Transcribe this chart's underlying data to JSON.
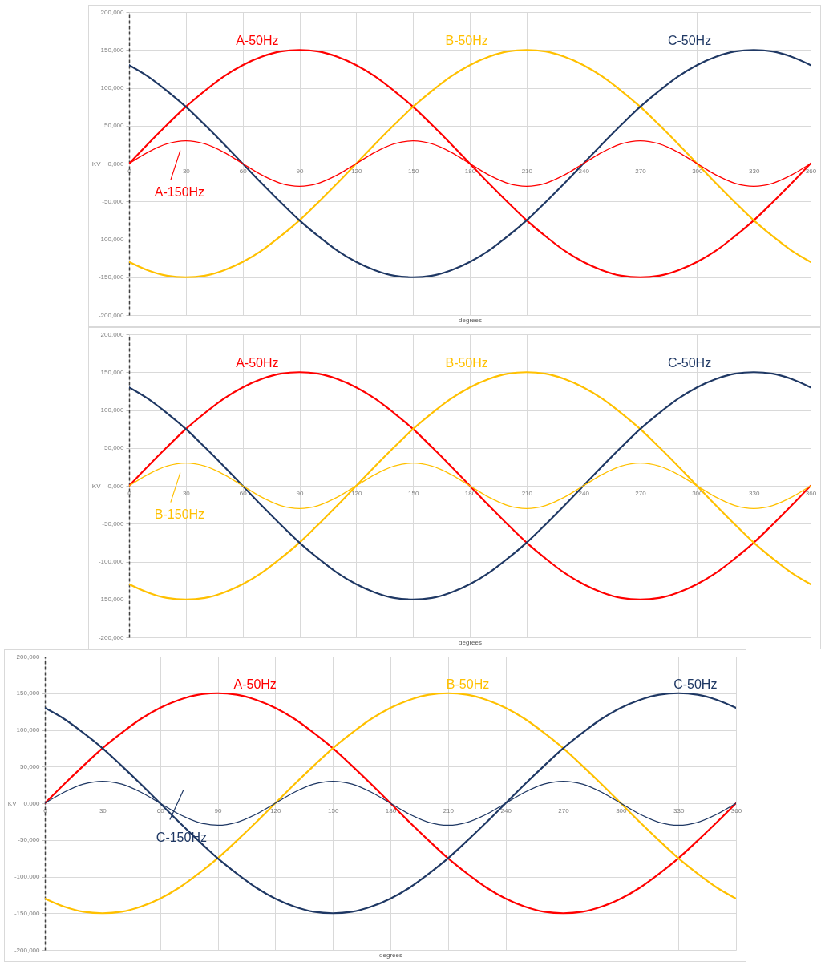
{
  "chart_data": [
    {
      "type": "line",
      "xlabel": "degrees",
      "ylabel": "KV",
      "grid": true,
      "x": [
        0,
        10,
        20,
        30,
        40,
        50,
        60,
        70,
        80,
        90,
        100,
        110,
        120,
        130,
        140,
        150,
        160,
        170,
        180,
        190,
        200,
        210,
        220,
        230,
        240,
        250,
        260,
        270,
        280,
        290,
        300,
        310,
        320,
        330,
        340,
        350,
        360
      ],
      "xlim": [
        0,
        360
      ],
      "xticks": [
        0,
        30,
        60,
        90,
        120,
        150,
        180,
        210,
        240,
        270,
        300,
        330,
        360
      ],
      "ylim": [
        -200,
        200
      ],
      "yticks": [
        {
          "value": -200,
          "label": "-200,000"
        },
        {
          "value": -150,
          "label": "-150,000"
        },
        {
          "value": -100,
          "label": "-100,000"
        },
        {
          "value": -50,
          "label": "-50,000"
        },
        {
          "value": 0,
          "label": "0,000"
        },
        {
          "value": 50,
          "label": "50,000"
        },
        {
          "value": 100,
          "label": "100,000"
        },
        {
          "value": 150,
          "label": "150,000"
        },
        {
          "value": 200,
          "label": "200,000"
        }
      ],
      "series": [
        {
          "name": "A-50Hz",
          "color": "#ff0000",
          "values": [
            0,
            26,
            51,
            75,
            96,
            115,
            130,
            141,
            148,
            150,
            148,
            141,
            130,
            115,
            96,
            75,
            51,
            26,
            0,
            -26,
            -51,
            -75,
            -96,
            -115,
            -130,
            -141,
            -148,
            -150,
            -148,
            -141,
            -130,
            -115,
            -96,
            -75,
            -51,
            -26,
            0
          ]
        },
        {
          "name": "B-50Hz",
          "color": "#ffc000",
          "values": [
            -130,
            -141,
            -148,
            -150,
            -148,
            -141,
            -130,
            -115,
            -96,
            -75,
            -51,
            -26,
            0,
            26,
            51,
            75,
            96,
            115,
            130,
            141,
            148,
            150,
            148,
            141,
            130,
            115,
            96,
            75,
            51,
            26,
            0,
            -26,
            -51,
            -75,
            -96,
            -115,
            -130
          ]
        },
        {
          "name": "C-50Hz",
          "color": "#1f3864",
          "values": [
            130,
            115,
            96,
            75,
            51,
            26,
            0,
            -26,
            -51,
            -75,
            -96,
            -115,
            -130,
            -141,
            -148,
            -150,
            -148,
            -141,
            -130,
            -115,
            -96,
            -75,
            -51,
            -26,
            0,
            26,
            51,
            75,
            96,
            115,
            130,
            141,
            148,
            150,
            148,
            141,
            130
          ]
        },
        {
          "name": "A-150Hz",
          "color": "#ff0000",
          "values": [
            0,
            15,
            26,
            30,
            26,
            15,
            0,
            -15,
            -26,
            -30,
            -26,
            -15,
            0,
            15,
            26,
            30,
            26,
            15,
            0,
            -15,
            -26,
            -30,
            -26,
            -15,
            0,
            15,
            26,
            30,
            26,
            15,
            0,
            -15,
            -26,
            -30,
            -26,
            -15,
            0
          ]
        }
      ]
    },
    {
      "type": "line",
      "xlabel": "degrees",
      "ylabel": "KV",
      "grid": true,
      "x": [
        0,
        10,
        20,
        30,
        40,
        50,
        60,
        70,
        80,
        90,
        100,
        110,
        120,
        130,
        140,
        150,
        160,
        170,
        180,
        190,
        200,
        210,
        220,
        230,
        240,
        250,
        260,
        270,
        280,
        290,
        300,
        310,
        320,
        330,
        340,
        350,
        360
      ],
      "xlim": [
        0,
        360
      ],
      "xticks": [
        0,
        30,
        60,
        90,
        120,
        150,
        180,
        210,
        240,
        270,
        300,
        330,
        360
      ],
      "ylim": [
        -200,
        200
      ],
      "yticks": [
        {
          "value": -200,
          "label": "-200,000"
        },
        {
          "value": -150,
          "label": "-150,000"
        },
        {
          "value": -100,
          "label": "-100,000"
        },
        {
          "value": -50,
          "label": "-50,000"
        },
        {
          "value": 0,
          "label": "0,000"
        },
        {
          "value": 50,
          "label": "50,000"
        },
        {
          "value": 100,
          "label": "100,000"
        },
        {
          "value": 150,
          "label": "150,000"
        },
        {
          "value": 200,
          "label": "200,000"
        }
      ],
      "series": [
        {
          "name": "A-50Hz",
          "color": "#ff0000",
          "values": [
            0,
            26,
            51,
            75,
            96,
            115,
            130,
            141,
            148,
            150,
            148,
            141,
            130,
            115,
            96,
            75,
            51,
            26,
            0,
            -26,
            -51,
            -75,
            -96,
            -115,
            -130,
            -141,
            -148,
            -150,
            -148,
            -141,
            -130,
            -115,
            -96,
            -75,
            -51,
            -26,
            0
          ]
        },
        {
          "name": "B-50Hz",
          "color": "#ffc000",
          "values": [
            -130,
            -141,
            -148,
            -150,
            -148,
            -141,
            -130,
            -115,
            -96,
            -75,
            -51,
            -26,
            0,
            26,
            51,
            75,
            96,
            115,
            130,
            141,
            148,
            150,
            148,
            141,
            130,
            115,
            96,
            75,
            51,
            26,
            0,
            -26,
            -51,
            -75,
            -96,
            -115,
            -130
          ]
        },
        {
          "name": "C-50Hz",
          "color": "#1f3864",
          "values": [
            130,
            115,
            96,
            75,
            51,
            26,
            0,
            -26,
            -51,
            -75,
            -96,
            -115,
            -130,
            -141,
            -148,
            -150,
            -148,
            -141,
            -130,
            -115,
            -96,
            -75,
            -51,
            -26,
            0,
            26,
            51,
            75,
            96,
            115,
            130,
            141,
            148,
            150,
            148,
            141,
            130
          ]
        },
        {
          "name": "B-150Hz",
          "color": "#ffc000",
          "values": [
            0,
            15,
            26,
            30,
            26,
            15,
            0,
            -15,
            -26,
            -30,
            -26,
            -15,
            0,
            15,
            26,
            30,
            26,
            15,
            0,
            -15,
            -26,
            -30,
            -26,
            -15,
            0,
            15,
            26,
            30,
            26,
            15,
            0,
            -15,
            -26,
            -30,
            -26,
            -15,
            0
          ]
        }
      ]
    },
    {
      "type": "line",
      "xlabel": "degrees",
      "ylabel": "KV",
      "grid": true,
      "x": [
        0,
        10,
        20,
        30,
        40,
        50,
        60,
        70,
        80,
        90,
        100,
        110,
        120,
        130,
        140,
        150,
        160,
        170,
        180,
        190,
        200,
        210,
        220,
        230,
        240,
        250,
        260,
        270,
        280,
        290,
        300,
        310,
        320,
        330,
        340,
        350,
        360
      ],
      "xlim": [
        0,
        360
      ],
      "xticks": [
        0,
        30,
        60,
        90,
        120,
        150,
        180,
        210,
        240,
        270,
        300,
        330,
        360
      ],
      "ylim": [
        -200,
        200
      ],
      "yticks": [
        {
          "value": -200,
          "label": "-200,000"
        },
        {
          "value": -150,
          "label": "-150,000"
        },
        {
          "value": -100,
          "label": "-100,000"
        },
        {
          "value": -50,
          "label": "-50,000"
        },
        {
          "value": 0,
          "label": "0,000"
        },
        {
          "value": 50,
          "label": "50,000"
        },
        {
          "value": 100,
          "label": "100,000"
        },
        {
          "value": 150,
          "label": "150,000"
        },
        {
          "value": 200,
          "label": "200,000"
        }
      ],
      "series": [
        {
          "name": "A-50Hz",
          "color": "#ff0000",
          "values": [
            0,
            26,
            51,
            75,
            96,
            115,
            130,
            141,
            148,
            150,
            148,
            141,
            130,
            115,
            96,
            75,
            51,
            26,
            0,
            -26,
            -51,
            -75,
            -96,
            -115,
            -130,
            -141,
            -148,
            -150,
            -148,
            -141,
            -130,
            -115,
            -96,
            -75,
            -51,
            -26,
            0
          ]
        },
        {
          "name": "B-50Hz",
          "color": "#ffc000",
          "values": [
            -130,
            -141,
            -148,
            -150,
            -148,
            -141,
            -130,
            -115,
            -96,
            -75,
            -51,
            -26,
            0,
            26,
            51,
            75,
            96,
            115,
            130,
            141,
            148,
            150,
            148,
            141,
            130,
            115,
            96,
            75,
            51,
            26,
            0,
            -26,
            -51,
            -75,
            -96,
            -115,
            -130
          ]
        },
        {
          "name": "C-50Hz",
          "color": "#1f3864",
          "values": [
            130,
            115,
            96,
            75,
            51,
            26,
            0,
            -26,
            -51,
            -75,
            -96,
            -115,
            -130,
            -141,
            -148,
            -150,
            -148,
            -141,
            -130,
            -115,
            -96,
            -75,
            -51,
            -26,
            0,
            26,
            51,
            75,
            96,
            115,
            130,
            141,
            148,
            150,
            148,
            141,
            130
          ]
        },
        {
          "name": "C-150Hz",
          "color": "#1f3864",
          "values": [
            0,
            15,
            26,
            30,
            26,
            15,
            0,
            -15,
            -26,
            -30,
            -26,
            -15,
            0,
            15,
            26,
            30,
            26,
            15,
            0,
            -15,
            -26,
            -30,
            -26,
            -15,
            0,
            15,
            26,
            30,
            26,
            15,
            0,
            -15,
            -26,
            -30,
            -26,
            -15,
            0
          ]
        }
      ]
    }
  ]
}
